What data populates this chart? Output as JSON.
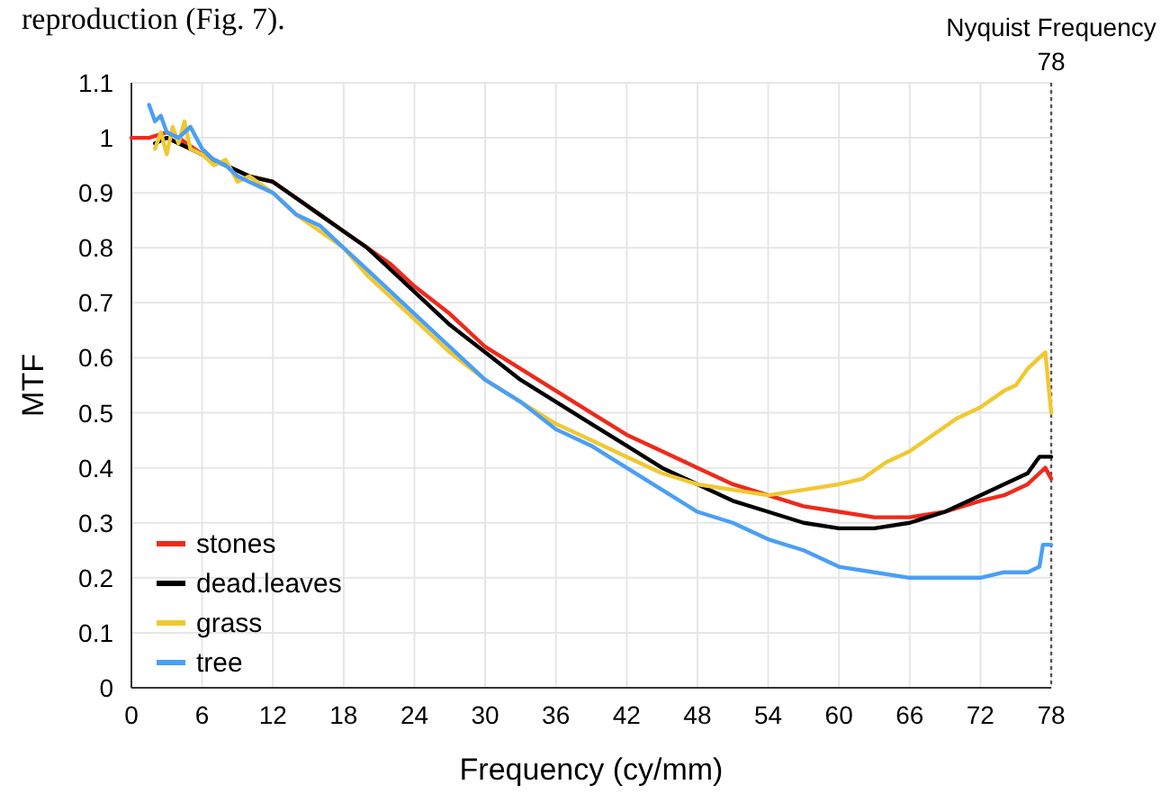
{
  "chart_data": {
    "type": "line",
    "xlabel": "Frequency (cy/mm)",
    "ylabel": "MTF",
    "xlim": [
      0,
      78
    ],
    "xticks": [
      0,
      6,
      12,
      18,
      24,
      30,
      36,
      42,
      48,
      54,
      60,
      66,
      72,
      78
    ],
    "ylim": [
      0,
      1.1
    ],
    "yticks": [
      0,
      0.1,
      0.2,
      0.3,
      0.4,
      0.5,
      0.6,
      0.7,
      0.8,
      0.9,
      1,
      1.1
    ],
    "grid": true,
    "legend": "bottom left",
    "line_style": "solid",
    "marker": "none",
    "annotations": [
      "reproduction (Fig. 7).",
      "78"
    ],
    "ref_lines": [
      {
        "axis": "x",
        "value": 78,
        "label": "Nyquist Frequency",
        "line_style": "dotted",
        "color": "#555555"
      }
    ],
    "series": [
      {
        "name": "stones",
        "color": "#ee2a1b",
        "x": [
          0,
          1.5,
          3,
          4,
          6,
          8,
          10,
          12,
          14,
          16,
          18,
          20,
          22,
          24,
          27,
          30,
          33,
          36,
          39,
          42,
          45,
          48,
          51,
          54,
          57,
          60,
          63,
          66,
          69,
          72,
          74,
          76,
          77,
          77.5,
          78
        ],
        "values": [
          1,
          1,
          1.01,
          1,
          0.97,
          0.95,
          0.93,
          0.92,
          0.89,
          0.86,
          0.83,
          0.8,
          0.77,
          0.73,
          0.68,
          0.62,
          0.58,
          0.54,
          0.5,
          0.46,
          0.43,
          0.4,
          0.37,
          0.35,
          0.33,
          0.32,
          0.31,
          0.31,
          0.32,
          0.34,
          0.35,
          0.37,
          0.39,
          0.4,
          0.38
        ]
      },
      {
        "name": "dead.leaves",
        "color": "#000000",
        "x": [
          2,
          3,
          4,
          6,
          8,
          10,
          12,
          14,
          16,
          18,
          20,
          22,
          24,
          27,
          30,
          33,
          36,
          39,
          42,
          45,
          48,
          51,
          54,
          57,
          60,
          63,
          66,
          69,
          72,
          74,
          76,
          77,
          78
        ],
        "values": [
          0.99,
          1,
          0.99,
          0.97,
          0.95,
          0.93,
          0.92,
          0.89,
          0.86,
          0.83,
          0.8,
          0.76,
          0.72,
          0.66,
          0.61,
          0.56,
          0.52,
          0.48,
          0.44,
          0.4,
          0.37,
          0.34,
          0.32,
          0.3,
          0.29,
          0.29,
          0.3,
          0.32,
          0.35,
          0.37,
          0.39,
          0.42,
          0.42
        ]
      },
      {
        "name": "grass",
        "color": "#f0c832",
        "x": [
          2,
          2.5,
          3,
          3.5,
          4,
          4.5,
          5,
          6,
          7,
          8,
          9,
          10,
          12,
          14,
          16,
          18,
          20,
          22,
          24,
          27,
          30,
          33,
          36,
          39,
          42,
          45,
          48,
          51,
          54,
          57,
          60,
          62,
          64,
          66,
          68,
          70,
          72,
          74,
          75,
          76,
          77,
          77.5,
          78
        ],
        "values": [
          0.98,
          1.01,
          0.97,
          1.02,
          0.99,
          1.03,
          0.98,
          0.97,
          0.95,
          0.96,
          0.92,
          0.93,
          0.9,
          0.86,
          0.83,
          0.8,
          0.75,
          0.71,
          0.67,
          0.61,
          0.56,
          0.52,
          0.48,
          0.45,
          0.42,
          0.39,
          0.37,
          0.36,
          0.35,
          0.36,
          0.37,
          0.38,
          0.41,
          0.43,
          0.46,
          0.49,
          0.51,
          0.54,
          0.55,
          0.58,
          0.6,
          0.61,
          0.5
        ]
      },
      {
        "name": "tree",
        "color": "#4a9ff5",
        "x": [
          1.5,
          2,
          2.5,
          3,
          4,
          5,
          6,
          7,
          8,
          9,
          10,
          12,
          14,
          16,
          18,
          20,
          22,
          24,
          27,
          30,
          33,
          36,
          39,
          42,
          45,
          48,
          51,
          54,
          57,
          60,
          63,
          66,
          69,
          72,
          74,
          76,
          77,
          77.3,
          78
        ],
        "values": [
          1.06,
          1.03,
          1.04,
          1.01,
          1,
          1.02,
          0.98,
          0.96,
          0.95,
          0.93,
          0.92,
          0.9,
          0.86,
          0.84,
          0.8,
          0.76,
          0.72,
          0.68,
          0.62,
          0.56,
          0.52,
          0.47,
          0.44,
          0.4,
          0.36,
          0.32,
          0.3,
          0.27,
          0.25,
          0.22,
          0.21,
          0.2,
          0.2,
          0.2,
          0.21,
          0.21,
          0.22,
          0.26,
          0.26
        ]
      }
    ]
  }
}
